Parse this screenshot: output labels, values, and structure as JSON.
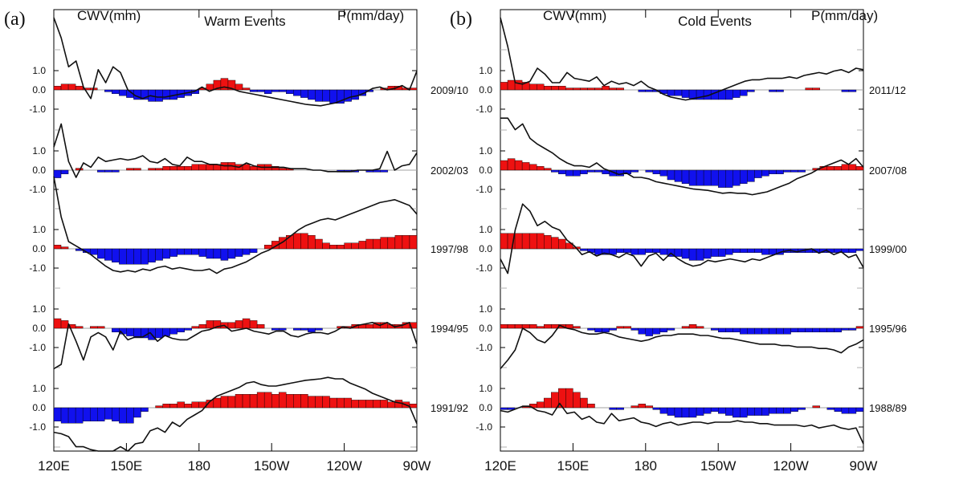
{
  "panels": [
    {
      "tag": "(a)",
      "left_header": "CWV(mm)",
      "title": "Warm Events",
      "right_header": "P(mm/day)",
      "x_tick_labels": [
        "120E",
        "150E",
        "180",
        "150W",
        "120W",
        "90W"
      ],
      "y_tick_labels": [
        "1.0",
        "0.0",
        "-1.0"
      ],
      "rows": [
        {
          "label": "2009/10",
          "precip": [
            0.2,
            0.3,
            0.3,
            0.2,
            0.1,
            0.1,
            0,
            -0.1,
            -0.2,
            -0.3,
            -0.4,
            -0.5,
            -0.5,
            -0.6,
            -0.6,
            -0.5,
            -0.5,
            -0.4,
            -0.3,
            -0.2,
            0.1,
            0.3,
            0.5,
            0.6,
            0.5,
            0.3,
            0.1,
            -0.1,
            -0.1,
            -0.2,
            -0.1,
            -0.1,
            -0.2,
            -0.3,
            -0.4,
            -0.5,
            -0.6,
            -0.6,
            -0.7,
            -0.7,
            -0.6,
            -0.5,
            -0.3,
            -0.1,
            0,
            0.1,
            0.2,
            0.2,
            0.1,
            0.1
          ],
          "cwv": [
            5.0,
            3.6,
            1.6,
            2.0,
            0.2,
            -0.6,
            1.4,
            0.5,
            1.6,
            1.2,
            0.0,
            -0.4,
            -0.6,
            -0.4,
            -0.5,
            -0.5,
            -0.4,
            -0.3,
            -0.2,
            -0.1,
            0.2,
            -0.1,
            0.1,
            0.2,
            0.1,
            -0.1,
            -0.2,
            -0.3,
            -0.4,
            -0.5,
            -0.6,
            -0.7,
            -0.8,
            -0.9,
            -1.0,
            -1.05,
            -1.1,
            -1.0,
            -0.9,
            -0.7,
            -0.5,
            -0.4,
            -0.2,
            0.1,
            0.2,
            0.0,
            0.1,
            0.3,
            0.0,
            1.3
          ]
        },
        {
          "label": "2002/03",
          "precip": [
            -0.4,
            -0.2,
            0,
            0.1,
            0,
            0,
            -0.1,
            -0.1,
            -0.1,
            0,
            0.1,
            0.1,
            0,
            0.1,
            0.1,
            0.2,
            0.2,
            0.2,
            0.2,
            0.3,
            0.3,
            0.3,
            0.3,
            0.4,
            0.4,
            0.3,
            0.3,
            0.2,
            0.3,
            0.3,
            0.2,
            0.1,
            0.1,
            0,
            0,
            0,
            0,
            0,
            0,
            -0.1,
            -0.1,
            -0.1,
            0,
            -0.1,
            -0.1,
            -0.1,
            0,
            0,
            0,
            0
          ],
          "cwv": [
            1.6,
            3.2,
            0.6,
            -0.5,
            0.5,
            0.2,
            0.9,
            0.6,
            0.7,
            0.8,
            0.7,
            0.8,
            1.0,
            0.6,
            0.5,
            0.8,
            0.4,
            0.3,
            0.9,
            0.6,
            0.6,
            0.4,
            0.4,
            0.3,
            0.3,
            0.2,
            0.5,
            0.3,
            0.2,
            0.2,
            0.2,
            0.2,
            0.1,
            0.1,
            0.1,
            0.0,
            0.0,
            -0.1,
            -0.1,
            -0.1,
            -0.1,
            0.0,
            0.0,
            0.0,
            0.1,
            1.3,
            0.0,
            0.3,
            0.4,
            1.2
          ]
        },
        {
          "label": "1997/98",
          "precip": [
            0.2,
            0.1,
            0,
            -0.1,
            -0.2,
            -0.3,
            -0.5,
            -0.6,
            -0.7,
            -0.8,
            -0.8,
            -0.8,
            -0.8,
            -0.7,
            -0.6,
            -0.5,
            -0.4,
            -0.3,
            -0.3,
            -0.3,
            -0.4,
            -0.5,
            -0.5,
            -0.6,
            -0.5,
            -0.4,
            -0.3,
            -0.2,
            0,
            0.2,
            0.4,
            0.6,
            0.7,
            0.8,
            0.8,
            0.7,
            0.5,
            0.3,
            0.2,
            0.2,
            0.3,
            0.3,
            0.4,
            0.5,
            0.5,
            0.6,
            0.6,
            0.7,
            0.7,
            0.7
          ],
          "cwv": [
            5.0,
            2.2,
            0.5,
            0.2,
            -0.1,
            -0.4,
            -0.8,
            -1.2,
            -1.5,
            -1.6,
            -1.5,
            -1.6,
            -1.4,
            -1.5,
            -1.3,
            -1.2,
            -1.4,
            -1.3,
            -1.4,
            -1.5,
            -1.5,
            -1.4,
            -1.7,
            -1.4,
            -1.3,
            -1.1,
            -0.9,
            -0.6,
            -0.3,
            -0.1,
            0.2,
            0.5,
            0.9,
            1.3,
            1.6,
            1.8,
            2.0,
            2.1,
            2.0,
            2.2,
            2.4,
            2.6,
            2.8,
            3.0,
            3.2,
            3.3,
            3.4,
            3.2,
            3.0,
            2.4
          ]
        },
        {
          "label": "1994/95",
          "precip": [
            0.5,
            0.4,
            0.2,
            0.1,
            0,
            0.1,
            0.1,
            0,
            -0.2,
            -0.3,
            -0.4,
            -0.5,
            -0.5,
            -0.6,
            -0.5,
            -0.4,
            -0.3,
            -0.2,
            -0.1,
            0.1,
            0.2,
            0.4,
            0.4,
            0.3,
            0.3,
            0.4,
            0.5,
            0.4,
            0.2,
            0,
            -0.1,
            -0.1,
            0,
            -0.1,
            -0.1,
            -0.2,
            -0.1,
            0,
            0,
            0.1,
            0.1,
            0.2,
            0.2,
            0.2,
            0.3,
            0.3,
            0.2,
            0.2,
            0.3,
            0.3
          ],
          "cwv": [
            -2.8,
            -2.5,
            0.3,
            -0.9,
            -2.2,
            -0.6,
            -0.3,
            -0.6,
            -1.5,
            -0.2,
            -0.8,
            -0.6,
            -0.6,
            -0.3,
            -0.9,
            -0.5,
            -0.7,
            -0.8,
            -0.8,
            -0.5,
            -0.2,
            -0.1,
            0.1,
            0.2,
            -0.2,
            -0.1,
            0.0,
            -0.2,
            -0.3,
            -0.4,
            -0.2,
            -0.2,
            -0.5,
            -0.6,
            -0.4,
            -0.3,
            -0.3,
            -0.4,
            -0.2,
            0.1,
            0.0,
            0.2,
            0.3,
            0.4,
            0.2,
            0.4,
            0.1,
            0.2,
            0.4,
            -1.1
          ]
        },
        {
          "label": "1991/92",
          "precip": [
            -0.7,
            -0.8,
            -0.8,
            -0.8,
            -0.7,
            -0.7,
            -0.7,
            -0.6,
            -0.7,
            -0.8,
            -0.8,
            -0.5,
            -0.2,
            0,
            0.1,
            0.2,
            0.2,
            0.3,
            0.2,
            0.3,
            0.3,
            0.4,
            0.5,
            0.6,
            0.6,
            0.7,
            0.7,
            0.7,
            0.8,
            0.8,
            0.7,
            0.8,
            0.7,
            0.7,
            0.7,
            0.6,
            0.6,
            0.6,
            0.5,
            0.5,
            0.5,
            0.4,
            0.4,
            0.4,
            0.4,
            0.4,
            0.3,
            0.4,
            0.3,
            0.2
          ],
          "cwv": [
            -1.7,
            -1.8,
            -2.0,
            -2.7,
            -2.7,
            -2.9,
            -3.2,
            -3.5,
            -3.2,
            -2.7,
            -3.6,
            -2.5,
            -2.4,
            -1.6,
            -1.4,
            -1.7,
            -1.0,
            -1.3,
            -0.8,
            -0.5,
            -0.2,
            0.4,
            0.8,
            1.0,
            1.2,
            1.4,
            1.7,
            1.8,
            1.6,
            1.5,
            1.5,
            1.6,
            1.7,
            1.8,
            1.9,
            1.95,
            2.0,
            2.1,
            2.0,
            2.0,
            1.7,
            1.5,
            1.3,
            1.0,
            0.8,
            0.6,
            0.4,
            0.3,
            0.1,
            -1.1
          ]
        }
      ]
    },
    {
      "tag": "(b)",
      "left_header": "CWV(mm)",
      "title": "Cold Events",
      "right_header": "P(mm/day)",
      "x_tick_labels": [
        "120E",
        "150E",
        "180",
        "150W",
        "120W",
        "90W"
      ],
      "y_tick_labels": [
        "1.0",
        "0.0",
        "-1.0"
      ],
      "rows": [
        {
          "label": "2011/12",
          "precip": [
            0.4,
            0.5,
            0.5,
            0.4,
            0.3,
            0.3,
            0.2,
            0.2,
            0.2,
            0.1,
            0.1,
            0.1,
            0.1,
            0.1,
            0.2,
            0.1,
            0.1,
            0,
            0,
            -0.1,
            -0.1,
            -0.1,
            -0.2,
            -0.3,
            -0.3,
            -0.4,
            -0.5,
            -0.5,
            -0.5,
            -0.5,
            -0.5,
            -0.5,
            -0.4,
            -0.3,
            -0.1,
            0,
            0,
            -0.1,
            -0.1,
            0,
            0,
            0,
            0.1,
            0.1,
            0,
            0,
            0,
            -0.1,
            -0.1,
            0
          ],
          "cwv": [
            5.0,
            3.0,
            0.5,
            0.4,
            0.6,
            1.5,
            1.1,
            0.5,
            0.5,
            1.2,
            0.8,
            0.7,
            0.6,
            0.9,
            0.3,
            0.6,
            0.4,
            0.5,
            0.3,
            0.6,
            0.2,
            0.0,
            -0.3,
            -0.5,
            -0.6,
            -0.7,
            -0.6,
            -0.5,
            -0.4,
            -0.2,
            0.0,
            0.2,
            0.4,
            0.6,
            0.7,
            0.7,
            0.8,
            0.8,
            0.8,
            0.9,
            0.8,
            1.0,
            1.1,
            1.2,
            1.1,
            1.3,
            1.4,
            1.2,
            1.5,
            1.4
          ]
        },
        {
          "label": "2007/08",
          "precip": [
            0.5,
            0.6,
            0.5,
            0.4,
            0.3,
            0.2,
            0.1,
            -0.1,
            -0.2,
            -0.3,
            -0.3,
            -0.2,
            -0.1,
            -0.1,
            -0.2,
            -0.3,
            -0.3,
            -0.2,
            -0.1,
            0,
            -0.1,
            -0.2,
            -0.3,
            -0.5,
            -0.6,
            -0.7,
            -0.8,
            -0.8,
            -0.8,
            -0.8,
            -0.9,
            -0.9,
            -0.8,
            -0.7,
            -0.6,
            -0.4,
            -0.3,
            -0.2,
            -0.2,
            -0.1,
            -0.1,
            -0.1,
            0,
            0.1,
            0.2,
            0.2,
            0.2,
            0.3,
            0.3,
            0.2
          ],
          "cwv": [
            3.6,
            3.6,
            2.8,
            3.2,
            2.2,
            1.8,
            1.5,
            1.2,
            0.8,
            0.5,
            0.3,
            0.3,
            0.2,
            0.5,
            0.1,
            -0.1,
            -0.3,
            -0.2,
            -0.5,
            -0.5,
            -0.6,
            -0.8,
            -0.9,
            -1.0,
            -1.1,
            -1.2,
            -1.3,
            -1.35,
            -1.4,
            -1.5,
            -1.6,
            -1.55,
            -1.6,
            -1.6,
            -1.7,
            -1.6,
            -1.5,
            -1.3,
            -1.1,
            -0.9,
            -0.6,
            -0.4,
            -0.2,
            0.1,
            0.3,
            0.5,
            0.7,
            0.4,
            0.8,
            0.2
          ]
        },
        {
          "label": "1999/00",
          "precip": [
            0.8,
            0.8,
            0.8,
            0.8,
            0.8,
            0.8,
            0.7,
            0.6,
            0.5,
            0.3,
            0.1,
            -0.1,
            -0.2,
            -0.3,
            -0.3,
            -0.3,
            -0.2,
            -0.2,
            -0.3,
            -0.3,
            -0.2,
            -0.2,
            -0.3,
            -0.4,
            -0.4,
            -0.5,
            -0.6,
            -0.6,
            -0.5,
            -0.4,
            -0.4,
            -0.3,
            -0.2,
            -0.2,
            -0.2,
            -0.2,
            -0.3,
            -0.3,
            -0.3,
            -0.2,
            -0.2,
            -0.2,
            -0.2,
            -0.2,
            -0.2,
            -0.2,
            -0.2,
            -0.2,
            -0.2,
            -0.1
          ],
          "cwv": [
            -0.7,
            -1.7,
            1.3,
            3.1,
            2.6,
            1.6,
            1.9,
            1.5,
            1.3,
            0.6,
            0.2,
            -0.4,
            -0.2,
            -0.5,
            -0.3,
            -0.4,
            -0.6,
            -0.3,
            -0.5,
            -1.2,
            -0.5,
            -0.3,
            -0.8,
            -0.3,
            -0.7,
            -1.0,
            -1.2,
            -1.1,
            -0.8,
            -0.9,
            -0.8,
            -0.7,
            -0.8,
            -0.9,
            -0.7,
            -0.8,
            -0.6,
            -0.4,
            -0.2,
            -0.1,
            -0.2,
            -0.1,
            0.0,
            -0.3,
            -0.1,
            -0.4,
            -0.2,
            -0.6,
            -0.4,
            -1.3
          ]
        },
        {
          "label": "1995/96",
          "precip": [
            0.2,
            0.2,
            0.2,
            0.2,
            0.2,
            0.1,
            0.2,
            0.2,
            0.2,
            0.2,
            0.1,
            0,
            -0.1,
            -0.2,
            -0.2,
            -0.1,
            0.1,
            0.1,
            -0.1,
            -0.3,
            -0.4,
            -0.3,
            -0.2,
            -0.1,
            0,
            0.1,
            0.2,
            0.1,
            0,
            -0.1,
            -0.2,
            -0.2,
            -0.2,
            -0.3,
            -0.3,
            -0.3,
            -0.3,
            -0.3,
            -0.3,
            -0.3,
            -0.2,
            -0.2,
            -0.2,
            -0.2,
            -0.2,
            -0.2,
            -0.2,
            -0.1,
            -0.1,
            0.1
          ],
          "cwv": [
            -2.8,
            -2.2,
            -1.5,
            0.0,
            -0.3,
            -0.8,
            -1.0,
            -0.5,
            0.2,
            0.0,
            -0.1,
            -0.3,
            -0.4,
            -0.4,
            -0.3,
            -0.4,
            -0.6,
            -0.7,
            -0.8,
            -0.9,
            -0.8,
            -0.6,
            -0.5,
            -0.5,
            -0.4,
            -0.4,
            -0.4,
            -0.5,
            -0.5,
            -0.6,
            -0.7,
            -0.7,
            -0.8,
            -0.9,
            -1.0,
            -1.1,
            -1.1,
            -1.1,
            -1.2,
            -1.2,
            -1.3,
            -1.3,
            -1.3,
            -1.4,
            -1.4,
            -1.5,
            -1.7,
            -1.3,
            -1.1,
            -0.8
          ]
        },
        {
          "label": "1988/89",
          "precip": [
            -0.1,
            -0.1,
            0,
            0.1,
            0.2,
            0.3,
            0.5,
            0.8,
            1.0,
            1.0,
            0.8,
            0.5,
            0.2,
            0,
            0,
            -0.1,
            -0.1,
            0,
            0.1,
            0.2,
            0.1,
            -0.1,
            -0.3,
            -0.4,
            -0.5,
            -0.5,
            -0.5,
            -0.4,
            -0.3,
            -0.2,
            -0.3,
            -0.4,
            -0.5,
            -0.5,
            -0.4,
            -0.4,
            -0.4,
            -0.3,
            -0.3,
            -0.3,
            -0.2,
            -0.1,
            0,
            0.1,
            0,
            -0.1,
            -0.2,
            -0.3,
            -0.3,
            -0.2
          ],
          "cwv": [
            -0.2,
            -0.3,
            -0.1,
            0.1,
            0.1,
            -0.2,
            -0.3,
            -0.5,
            0.3,
            -0.4,
            -0.3,
            -0.8,
            -0.6,
            -1.0,
            -1.1,
            -0.4,
            -0.9,
            -0.8,
            -0.7,
            -1.0,
            -1.1,
            -1.3,
            -1.1,
            -1.0,
            -1.2,
            -1.1,
            -1.0,
            -1.0,
            -1.1,
            -1.0,
            -1.0,
            -1.0,
            -0.9,
            -1.0,
            -1.0,
            -1.1,
            -1.1,
            -1.2,
            -1.2,
            -1.2,
            -1.2,
            -1.3,
            -1.2,
            -1.4,
            -1.3,
            -1.2,
            -1.4,
            -1.5,
            -1.4,
            -2.5
          ]
        }
      ]
    }
  ],
  "colors": {
    "positive": "#ee1111",
    "negative": "#1111ee",
    "line": "#111111"
  }
}
